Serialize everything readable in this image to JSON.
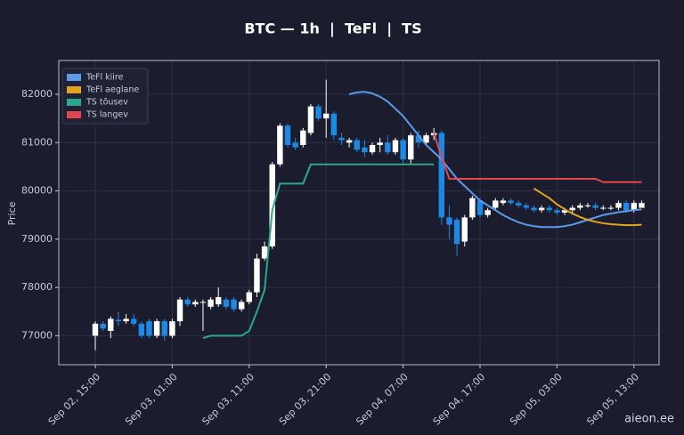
{
  "chart_data": {
    "type": "candlestick",
    "title": "BTC — 1h  |  TeFl  |  TS",
    "ylabel": "Price",
    "categories": [
      "Sep 02, 15:00",
      null,
      null,
      null,
      null,
      null,
      null,
      null,
      null,
      null,
      "Sep 03, 01:00",
      null,
      null,
      null,
      null,
      null,
      null,
      null,
      null,
      null,
      "Sep 03, 11:00",
      null,
      null,
      null,
      null,
      null,
      null,
      null,
      null,
      null,
      "Sep 03, 21:00",
      null,
      null,
      null,
      null,
      null,
      null,
      null,
      null,
      null,
      "Sep 04, 07:00",
      null,
      null,
      null,
      null,
      null,
      null,
      null,
      null,
      null,
      "Sep 04, 17:00",
      null,
      null,
      null,
      null,
      null,
      null,
      null,
      null,
      null,
      "Sep 05, 03:00",
      null,
      null,
      null,
      null,
      null,
      null,
      null,
      null,
      null,
      "Sep 05, 13:00",
      null
    ],
    "open": [
      77000,
      77250,
      77100,
      77330,
      77300,
      77350,
      77250,
      77300,
      77000,
      77300,
      77000,
      77300,
      77750,
      77650,
      77700,
      77600,
      77650,
      77750,
      77750,
      77550,
      77700,
      77900,
      78600,
      78850,
      80550,
      81350,
      81000,
      80950,
      81200,
      81750,
      81500,
      81600,
      81100,
      81000,
      81050,
      80900,
      80800,
      80950,
      81000,
      80800,
      81050,
      80650,
      81150,
      81000,
      81150,
      81200,
      79450,
      79400,
      78950,
      79450,
      79800,
      79500,
      79650,
      79750,
      79800,
      79750,
      79700,
      79650,
      79600,
      79650,
      79600,
      79550,
      79600,
      79650,
      79700,
      79700,
      79650,
      79650,
      79650,
      79750,
      79600,
      79650
    ],
    "high": [
      77300,
      77300,
      77400,
      77500,
      77450,
      77450,
      77300,
      77350,
      77350,
      77350,
      77350,
      77800,
      77800,
      77750,
      77750,
      77800,
      78000,
      77800,
      77800,
      77750,
      77950,
      78700,
      78950,
      80600,
      81400,
      81400,
      81100,
      81300,
      81800,
      81800,
      82300,
      81650,
      81200,
      81100,
      81100,
      81050,
      81000,
      81100,
      81150,
      81100,
      81100,
      81200,
      81250,
      81200,
      81300,
      81250,
      79700,
      79450,
      79500,
      79900,
      79850,
      79650,
      79850,
      79850,
      79850,
      79800,
      79750,
      79700,
      79700,
      79700,
      79650,
      79650,
      79700,
      79750,
      79750,
      79750,
      79700,
      79700,
      79800,
      79800,
      79800,
      79800
    ],
    "low": [
      76700,
      77100,
      76950,
      77200,
      77250,
      77200,
      76950,
      76950,
      76950,
      76900,
      76950,
      77200,
      77600,
      77600,
      77100,
      77550,
      77600,
      77550,
      77500,
      77500,
      77650,
      77800,
      78550,
      78800,
      80500,
      80900,
      80850,
      80900,
      81150,
      81450,
      81100,
      81050,
      80950,
      80900,
      80800,
      80700,
      80750,
      80800,
      80750,
      80750,
      80550,
      80550,
      80900,
      80950,
      81050,
      79300,
      79000,
      78650,
      78850,
      79400,
      79450,
      79450,
      79600,
      79700,
      79700,
      79650,
      79600,
      79550,
      79550,
      79550,
      79500,
      79500,
      79550,
      79600,
      79650,
      79600,
      79600,
      79600,
      79600,
      79550,
      79550,
      79650
    ],
    "close": [
      77250,
      77150,
      77350,
      77300,
      77350,
      77250,
      77000,
      77000,
      77300,
      77000,
      77300,
      77750,
      77650,
      77700,
      77700,
      77750,
      77800,
      77600,
      77550,
      77700,
      77900,
      78600,
      78850,
      80550,
      81350,
      80950,
      80900,
      81250,
      81750,
      81500,
      81600,
      81150,
      81050,
      81050,
      80850,
      80800,
      80950,
      81000,
      80800,
      81050,
      80650,
      81150,
      81000,
      81150,
      81200,
      79450,
      79300,
      78900,
      79450,
      79850,
      79500,
      79600,
      79800,
      79800,
      79750,
      79700,
      79650,
      79600,
      79650,
      79600,
      79550,
      79600,
      79650,
      79700,
      79700,
      79650,
      79650,
      79650,
      79750,
      79600,
      79750,
      79750
    ],
    "up_color": "#ffffff",
    "down_color": "#1e88e5",
    "series": [
      {
        "name": "TeFl kiire",
        "color": "#5b9bea",
        "values": [
          null,
          null,
          null,
          null,
          null,
          null,
          null,
          null,
          null,
          null,
          null,
          null,
          null,
          null,
          null,
          null,
          null,
          null,
          null,
          null,
          null,
          null,
          null,
          null,
          null,
          null,
          null,
          null,
          null,
          null,
          null,
          null,
          null,
          82000,
          82040,
          82050,
          82020,
          81950,
          81850,
          81700,
          81550,
          81350,
          81150,
          80950,
          80800,
          80650,
          80450,
          80250,
          80100,
          79950,
          79800,
          79700,
          79600,
          79500,
          79420,
          79350,
          79300,
          79270,
          79250,
          79250,
          79250,
          79270,
          79300,
          79350,
          79400,
          79450,
          79500,
          79530,
          79560,
          79580,
          79600,
          79620
        ]
      },
      {
        "name": "TeFl aeglane",
        "color": "#e6a21a",
        "values": [
          null,
          null,
          null,
          null,
          null,
          null,
          null,
          null,
          null,
          null,
          null,
          null,
          null,
          null,
          null,
          null,
          null,
          null,
          null,
          null,
          null,
          null,
          null,
          null,
          null,
          null,
          null,
          null,
          null,
          null,
          null,
          null,
          null,
          null,
          null,
          null,
          null,
          null,
          null,
          null,
          null,
          null,
          null,
          null,
          null,
          null,
          null,
          null,
          null,
          null,
          null,
          null,
          null,
          null,
          null,
          null,
          null,
          80050,
          79950,
          79850,
          79720,
          79620,
          79530,
          79460,
          79400,
          79360,
          79330,
          79310,
          79300,
          79290,
          79290,
          79300
        ]
      },
      {
        "name": "TS tõusev",
        "color": "#2aa889",
        "values": [
          null,
          null,
          null,
          null,
          null,
          null,
          null,
          null,
          null,
          null,
          null,
          null,
          null,
          null,
          76950,
          77000,
          77000,
          77000,
          77000,
          77000,
          77100,
          77500,
          77950,
          79600,
          80150,
          80150,
          80150,
          80150,
          80550,
          80550,
          80550,
          80550,
          80550,
          80550,
          80550,
          80550,
          80550,
          80550,
          80550,
          80550,
          80550,
          80550,
          80550,
          80550,
          80550,
          null,
          null,
          null,
          null,
          null,
          null,
          null,
          null,
          null,
          null,
          null,
          null,
          null,
          null,
          null,
          null,
          null,
          null,
          null,
          null,
          null,
          null,
          null,
          null,
          null,
          null,
          null
        ]
      },
      {
        "name": "TS langev",
        "color": "#e0484d",
        "values": [
          null,
          null,
          null,
          null,
          null,
          null,
          null,
          null,
          null,
          null,
          null,
          null,
          null,
          null,
          null,
          null,
          null,
          null,
          null,
          null,
          null,
          null,
          null,
          null,
          null,
          null,
          null,
          null,
          null,
          null,
          null,
          null,
          null,
          null,
          null,
          null,
          null,
          null,
          null,
          null,
          null,
          null,
          null,
          null,
          81200,
          80700,
          80250,
          80250,
          80250,
          80250,
          80250,
          80250,
          80250,
          80250,
          80250,
          80250,
          80250,
          80250,
          80250,
          80250,
          80250,
          80250,
          80250,
          80250,
          80250,
          80250,
          80180,
          80180,
          80180,
          80180,
          80180,
          80180
        ]
      }
    ],
    "ylim": [
      76400,
      82700
    ],
    "yticks": [
      77000,
      78000,
      79000,
      80000,
      81000,
      82000
    ],
    "grid": true,
    "legend": "upper left"
  },
  "watermark": "aieon.ee"
}
